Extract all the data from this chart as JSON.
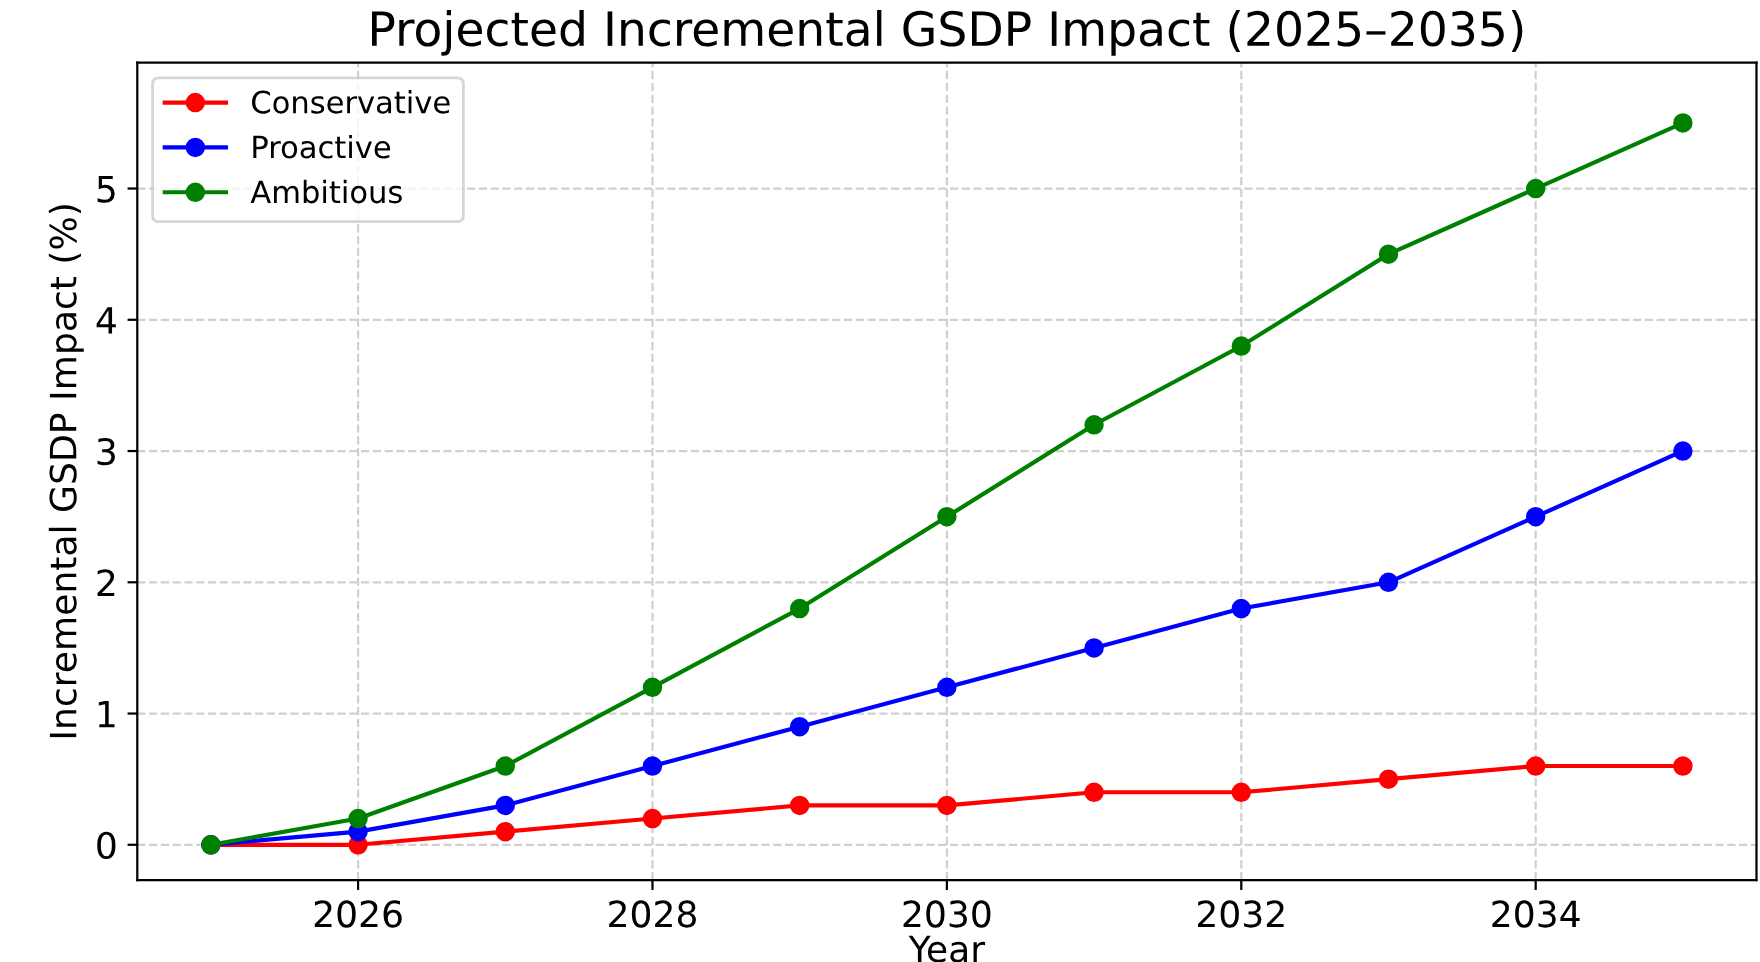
{
  "chart_data": {
    "type": "line",
    "title": "Projected Incremental GSDP Impact (2025–2035)",
    "xlabel": "Year",
    "ylabel": "Incremental GSDP Impact (%)",
    "x": [
      2025,
      2026,
      2027,
      2028,
      2029,
      2030,
      2031,
      2032,
      2033,
      2034,
      2035
    ],
    "series": [
      {
        "name": "Conservative",
        "color": "#ff0000",
        "values": [
          0,
          0,
          0.1,
          0.2,
          0.3,
          0.3,
          0.4,
          0.4,
          0.5,
          0.6,
          0.6
        ]
      },
      {
        "name": "Proactive",
        "color": "#0000ff",
        "values": [
          0,
          0.1,
          0.3,
          0.6,
          0.9,
          1.2,
          1.5,
          1.8,
          2.0,
          2.5,
          3.0
        ]
      },
      {
        "name": "Ambitious",
        "color": "#008000",
        "values": [
          0,
          0.2,
          0.6,
          1.2,
          1.8,
          2.5,
          3.2,
          3.8,
          4.5,
          5.0,
          5.5
        ]
      }
    ],
    "xlim": [
      2024.5,
      2035.5
    ],
    "xticks": [
      2026,
      2028,
      2030,
      2032,
      2034
    ],
    "ylim": [
      -0.27,
      5.96
    ],
    "yticks": [
      0,
      1,
      2,
      3,
      4,
      5
    ],
    "grid": true,
    "legend": "top left",
    "marker": "circle",
    "line_style": "solid"
  }
}
